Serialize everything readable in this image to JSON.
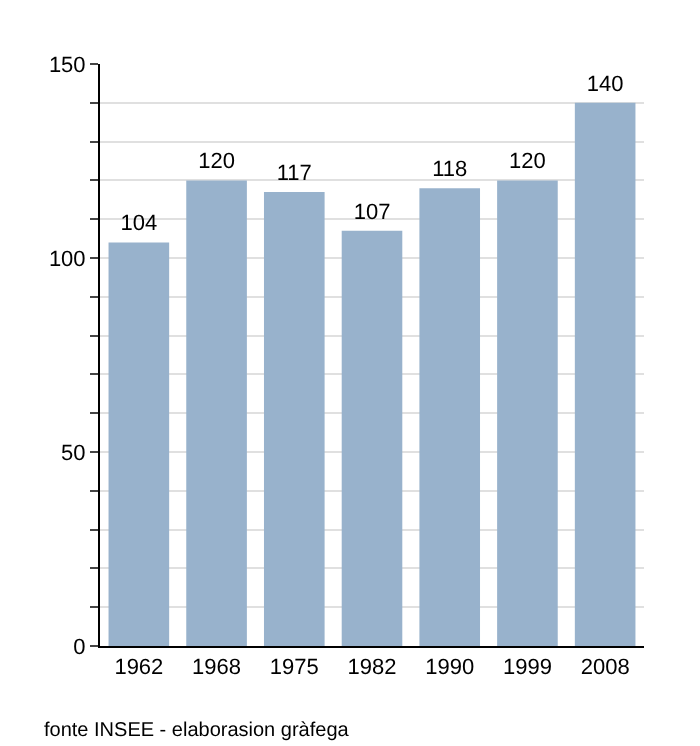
{
  "chart_data": {
    "type": "bar",
    "categories": [
      "1962",
      "1968",
      "1975",
      "1982",
      "1990",
      "1999",
      "2008"
    ],
    "values": [
      104,
      120,
      117,
      107,
      118,
      120,
      140
    ],
    "color": "#98b2cc",
    "data_labels": true,
    "ylim": [
      0,
      150
    ],
    "yticks": [
      0,
      {
        "value": 10,
        "label": null
      },
      {
        "value": 20,
        "label": null
      },
      {
        "value": 30,
        "label": null
      },
      {
        "value": 40,
        "label": null
      },
      50,
      {
        "value": 60,
        "label": null
      },
      {
        "value": 70,
        "label": null
      },
      {
        "value": 80,
        "label": null
      },
      {
        "value": 90,
        "label": null
      },
      100,
      {
        "value": 110,
        "label": null
      },
      {
        "value": 120,
        "label": null
      },
      {
        "value": 130,
        "label": null
      },
      {
        "value": 140,
        "label": null
      },
      150
    ],
    "grid": "y",
    "annotations": [
      "fonte INSEE - elaborasion gràfega"
    ]
  }
}
